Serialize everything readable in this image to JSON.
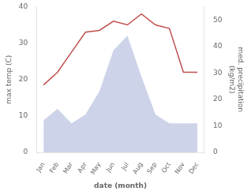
{
  "chart_data": {
    "type": "line",
    "categories": [
      "Jan",
      "Feb",
      "Mar",
      "Apr",
      "May",
      "Jun",
      "Jul",
      "Aug",
      "Sep",
      "Oct",
      "Nov",
      "Dec"
    ],
    "series": [
      {
        "type": "area",
        "color": "#b8c0e0",
        "axis": "y2",
        "values": [
          12.1,
          16.5,
          11,
          14.3,
          23.1,
          38.5,
          44,
          28.6,
          14.3,
          11,
          11,
          11
        ]
      },
      {
        "type": "line",
        "color": "#c0504d",
        "values": [
          18.5,
          22.0,
          27.5,
          33.0,
          33.5,
          36.0,
          35.0,
          38.0,
          35.0,
          34.0,
          22.0,
          22.0
        ]
      }
    ],
    "xlabel": "date (month)",
    "ylabel": "max temp (C)",
    "y2label": "med. precipitation\n(kg/m2)",
    "ylim": [
      0,
      40
    ],
    "yticks": [
      0,
      10,
      20,
      30,
      40
    ],
    "y2lim": [
      0,
      55
    ],
    "y2ticks": [
      0,
      10,
      20,
      30,
      40,
      50
    ],
    "grid": false
  }
}
